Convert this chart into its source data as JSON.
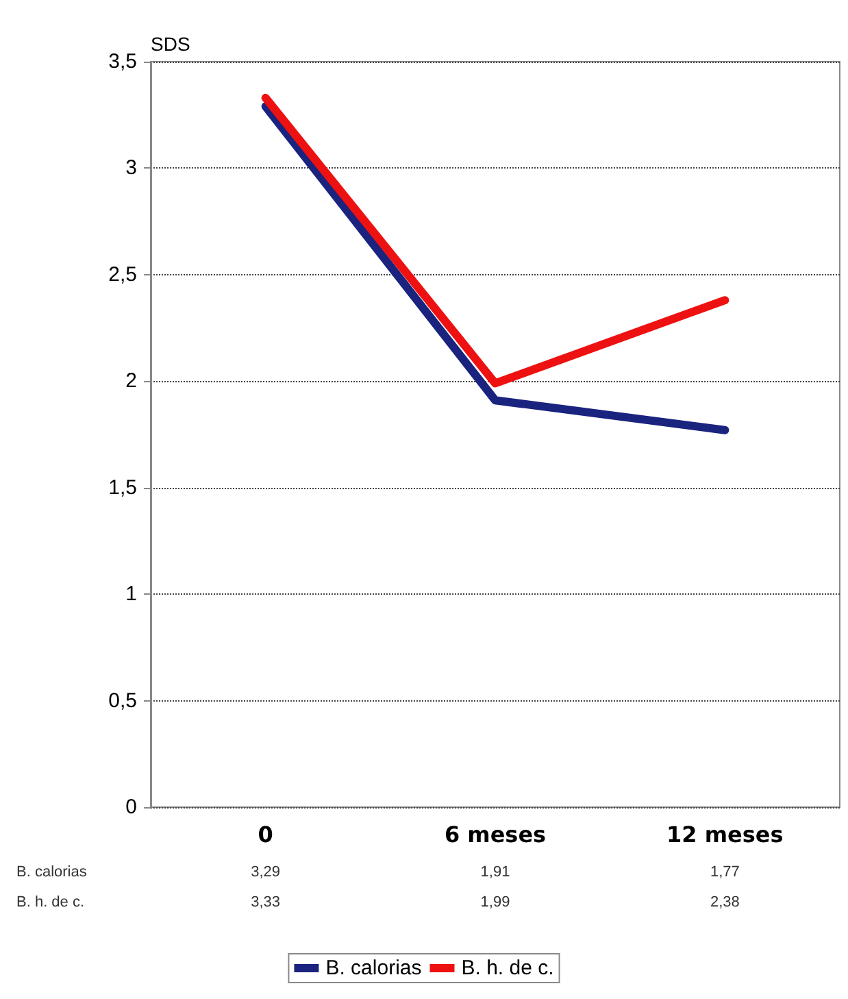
{
  "chart_data": {
    "type": "line",
    "ylabel": "SDS",
    "categories": [
      "0",
      "6 meses",
      "12 meses"
    ],
    "series": [
      {
        "name": "B. calorias",
        "color": "#1a237e",
        "values": [
          3.29,
          1.91,
          1.77
        ],
        "value_labels": [
          "3,29",
          "1,91",
          "1,77"
        ]
      },
      {
        "name": "B. h. de c.",
        "color": "#ee1111",
        "values": [
          3.33,
          1.99,
          2.38
        ],
        "value_labels": [
          "3,33",
          "1,99",
          "2,38"
        ]
      }
    ],
    "ylim": [
      0,
      3.5
    ],
    "yticks": [
      0,
      {
        "value": 0.5,
        "label": "0,5"
      },
      1,
      {
        "value": 1.5,
        "label": "1,5"
      },
      2,
      {
        "value": 2.5,
        "label": "2,5"
      },
      3,
      {
        "value": 3.5,
        "label": "3,5"
      }
    ],
    "grid": "y",
    "legend": "bottom",
    "marker": "none",
    "line_style": "solid"
  }
}
